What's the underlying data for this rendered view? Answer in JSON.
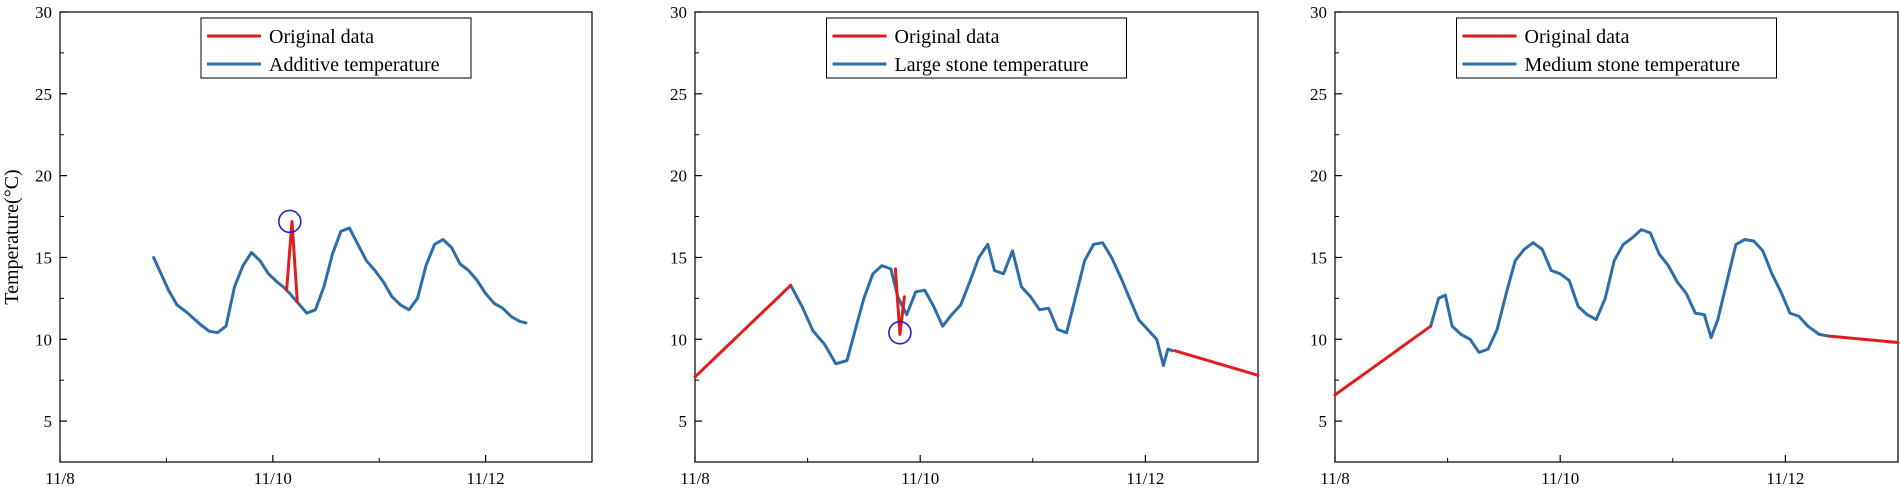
{
  "chart_data": [
    {
      "type": "line",
      "ylabel": "Temperature(°C)",
      "xlim": [
        0,
        5
      ],
      "ylim": [
        2.5,
        30
      ],
      "xticks": [
        0,
        2,
        4
      ],
      "xtick_labels": [
        "11/8",
        "11/10",
        "11/12"
      ],
      "yticks": [
        5,
        10,
        15,
        20,
        25,
        30
      ],
      "ytick_labels": [
        "5",
        "10",
        "15",
        "20",
        "25",
        "30"
      ],
      "legend_placement": "top-center",
      "series": [
        {
          "name": "Original data",
          "color": "#e01d1d",
          "x": [
            2.13,
            2.18,
            2.23
          ],
          "y": [
            13.0,
            17.2,
            12.3
          ]
        },
        {
          "name": "Additive temperature",
          "color": "#2d6ea8",
          "x": [
            0.88,
            0.95,
            1.02,
            1.1,
            1.2,
            1.32,
            1.4,
            1.48,
            1.56,
            1.64,
            1.72,
            1.8,
            1.88,
            1.96,
            2.04,
            2.1,
            2.16,
            2.24,
            2.32,
            2.4,
            2.48,
            2.56,
            2.64,
            2.72,
            2.8,
            2.88,
            2.96,
            3.04,
            3.12,
            3.2,
            3.28,
            3.36,
            3.44,
            3.52,
            3.6,
            3.68,
            3.76,
            3.84,
            3.92,
            4.0,
            4.08,
            4.16,
            4.24,
            4.32,
            4.38
          ],
          "y": [
            15.0,
            14.0,
            13.0,
            12.1,
            11.6,
            10.9,
            10.5,
            10.4,
            10.8,
            13.2,
            14.5,
            15.3,
            14.8,
            14.0,
            13.5,
            13.2,
            12.8,
            12.2,
            11.6,
            11.8,
            13.2,
            15.2,
            16.6,
            16.8,
            15.8,
            14.8,
            14.2,
            13.5,
            12.6,
            12.1,
            11.8,
            12.5,
            14.5,
            15.8,
            16.1,
            15.6,
            14.6,
            14.2,
            13.6,
            12.8,
            12.2,
            11.9,
            11.4,
            11.1,
            11.0
          ]
        }
      ],
      "annotations": [
        {
          "type": "circle",
          "x": 2.16,
          "y": 17.2
        }
      ]
    },
    {
      "type": "line",
      "ylabel": "",
      "xlim": [
        0,
        5
      ],
      "ylim": [
        2.5,
        30
      ],
      "xticks": [
        0,
        2,
        4
      ],
      "xtick_labels": [
        "11/8",
        "11/10",
        "11/12"
      ],
      "yticks": [
        5,
        10,
        15,
        20,
        25,
        30
      ],
      "ytick_labels": [
        "5",
        "10",
        "15",
        "20",
        "25",
        "30"
      ],
      "legend_placement": "top-center",
      "series": [
        {
          "name": "Original data",
          "color": "#e01d1d",
          "x": [
            0.0,
            0.85
          ],
          "y": [
            7.7,
            13.3
          ],
          "segments": [
            {
              "x": [
                0.0,
                0.85
              ],
              "y": [
                7.7,
                13.3
              ]
            },
            {
              "x": [
                1.78,
                1.82,
                1.86
              ],
              "y": [
                14.3,
                10.3,
                12.6
              ]
            },
            {
              "x": [
                4.26,
                5.0
              ],
              "y": [
                9.3,
                7.8
              ]
            }
          ]
        },
        {
          "name": "Large stone temperature",
          "color": "#2d6ea8",
          "x": [
            0.85,
            0.95,
            1.05,
            1.15,
            1.25,
            1.35,
            1.42,
            1.5,
            1.58,
            1.66,
            1.74,
            1.8,
            1.88,
            1.96,
            2.04,
            2.12,
            2.2,
            2.28,
            2.36,
            2.44,
            2.52,
            2.6,
            2.66,
            2.74,
            2.82,
            2.9,
            2.98,
            3.06,
            3.14,
            3.22,
            3.3,
            3.38,
            3.46,
            3.54,
            3.62,
            3.7,
            3.78,
            3.86,
            3.94,
            4.02,
            4.1,
            4.16,
            4.2,
            4.24
          ],
          "y": [
            13.3,
            12.0,
            10.5,
            9.7,
            8.5,
            8.7,
            10.5,
            12.5,
            14.0,
            14.5,
            14.3,
            12.6,
            11.5,
            12.9,
            13.0,
            12.0,
            10.8,
            11.5,
            12.1,
            13.5,
            15.0,
            15.8,
            14.2,
            14.0,
            15.4,
            13.2,
            12.6,
            11.8,
            11.9,
            10.6,
            10.4,
            12.6,
            14.8,
            15.8,
            15.9,
            15.0,
            13.8,
            12.5,
            11.2,
            10.6,
            10.0,
            8.4,
            9.4,
            9.3
          ]
        }
      ],
      "annotations": [
        {
          "type": "circle",
          "x": 1.82,
          "y": 10.4
        }
      ]
    },
    {
      "type": "line",
      "ylabel": "",
      "xlim": [
        0,
        5
      ],
      "ylim": [
        2.5,
        30
      ],
      "xticks": [
        0,
        2,
        4
      ],
      "xtick_labels": [
        "11/8",
        "11/10",
        "11/12"
      ],
      "yticks": [
        5,
        10,
        15,
        20,
        25,
        30
      ],
      "ytick_labels": [
        "5",
        "10",
        "15",
        "20",
        "25",
        "30"
      ],
      "legend_placement": "top-center",
      "series": [
        {
          "name": "Original data",
          "color": "#e01d1d",
          "x": [
            0.0,
            0.85
          ],
          "y": [
            6.6,
            10.8
          ],
          "segments": [
            {
              "x": [
                0.0,
                0.85
              ],
              "y": [
                6.6,
                10.8
              ]
            },
            {
              "x": [
                4.38,
                5.0
              ],
              "y": [
                10.2,
                9.8
              ]
            }
          ]
        },
        {
          "name": "Medium stone temperature",
          "color": "#2d6ea8",
          "x": [
            0.85,
            0.92,
            0.98,
            1.04,
            1.12,
            1.2,
            1.28,
            1.36,
            1.44,
            1.52,
            1.6,
            1.68,
            1.76,
            1.84,
            1.92,
            2.0,
            2.08,
            2.16,
            2.24,
            2.32,
            2.4,
            2.48,
            2.56,
            2.64,
            2.72,
            2.8,
            2.88,
            2.96,
            3.04,
            3.12,
            3.2,
            3.28,
            3.34,
            3.4,
            3.48,
            3.56,
            3.64,
            3.72,
            3.8,
            3.88,
            3.96,
            4.04,
            4.12,
            4.2,
            4.3,
            4.38
          ],
          "y": [
            10.8,
            12.5,
            12.7,
            10.8,
            10.3,
            10.0,
            9.2,
            9.4,
            10.6,
            12.8,
            14.8,
            15.5,
            15.9,
            15.5,
            14.2,
            14.0,
            13.6,
            12.0,
            11.5,
            11.2,
            12.5,
            14.8,
            15.8,
            16.2,
            16.7,
            16.5,
            15.2,
            14.5,
            13.5,
            12.8,
            11.6,
            11.5,
            10.1,
            11.2,
            13.5,
            15.8,
            16.1,
            16.0,
            15.4,
            14.0,
            12.9,
            11.6,
            11.4,
            10.8,
            10.3,
            10.2
          ]
        }
      ]
    }
  ]
}
